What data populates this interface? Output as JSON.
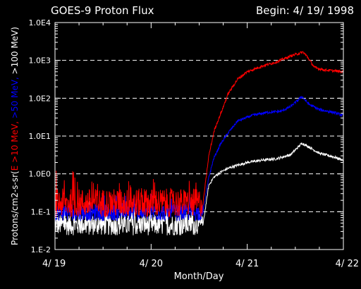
{
  "chart_data": {
    "type": "line",
    "title": "GOES-9 Proton Flux",
    "begin_label": "Begin: 4/ 19/ 1998",
    "xlabel": "Month/Day",
    "ylabel": {
      "prefix": "Protons/cm2-s-sr(",
      "e10": "E >10 MeV, ",
      "e50": ">50 MeV, ",
      "e100": ">100 MeV)"
    },
    "xlim": [
      0,
      3
    ],
    "x_ticks": [
      {
        "value": 0,
        "label": "4/ 19"
      },
      {
        "value": 1,
        "label": "4/ 20"
      },
      {
        "value": 2,
        "label": "4/ 21"
      },
      {
        "value": 3,
        "label": "4/ 22"
      }
    ],
    "y_scale": "log",
    "ylim": [
      0.01,
      10000
    ],
    "y_ticks": [
      {
        "value": 0.01,
        "label": "1.E-2"
      },
      {
        "value": 0.1,
        "label": "1.E-1"
      },
      {
        "value": 1,
        "label": "1.0E0"
      },
      {
        "value": 10,
        "label": "1.0E1"
      },
      {
        "value": 100,
        "label": "1.0E2"
      },
      {
        "value": 1000,
        "label": "1.0E3"
      },
      {
        "value": 10000,
        "label": "1.0E4"
      }
    ],
    "grid": "dashed horizontal at decades",
    "series": [
      {
        "key": "e10",
        "color": "#ff0000",
        "baseline": 0.17,
        "noise": 0.38,
        "x": [
          0,
          1.54,
          1.6,
          1.66,
          1.74,
          1.8,
          1.9,
          2.0,
          2.15,
          2.3,
          2.45,
          2.58,
          2.62,
          2.7,
          2.8,
          3.0
        ],
        "values": [
          0.17,
          0.17,
          3,
          15,
          50,
          130,
          320,
          500,
          700,
          900,
          1300,
          1650,
          1300,
          650,
          560,
          500
        ]
      },
      {
        "key": "e50",
        "color": "#0000ff",
        "baseline": 0.095,
        "noise": 0.22,
        "x": [
          0,
          1.54,
          1.6,
          1.65,
          1.72,
          1.8,
          1.9,
          2.05,
          2.2,
          2.35,
          2.45,
          2.57,
          2.64,
          2.75,
          2.9,
          3.0
        ],
        "values": [
          0.095,
          0.095,
          0.8,
          2.5,
          6,
          12,
          25,
          35,
          42,
          45,
          60,
          110,
          70,
          50,
          42,
          35
        ]
      },
      {
        "key": "e100",
        "color": "#ffffff",
        "baseline": 0.045,
        "noise": 0.28,
        "x": [
          0,
          1.54,
          1.6,
          1.65,
          1.72,
          1.8,
          1.9,
          2.0,
          2.15,
          2.3,
          2.45,
          2.57,
          2.65,
          2.75,
          2.9,
          3.0
        ],
        "values": [
          0.045,
          0.045,
          0.5,
          0.8,
          1.1,
          1.4,
          1.7,
          2.0,
          2.3,
          2.5,
          3.2,
          6.5,
          5.0,
          3.5,
          2.8,
          2.3
        ]
      }
    ]
  }
}
